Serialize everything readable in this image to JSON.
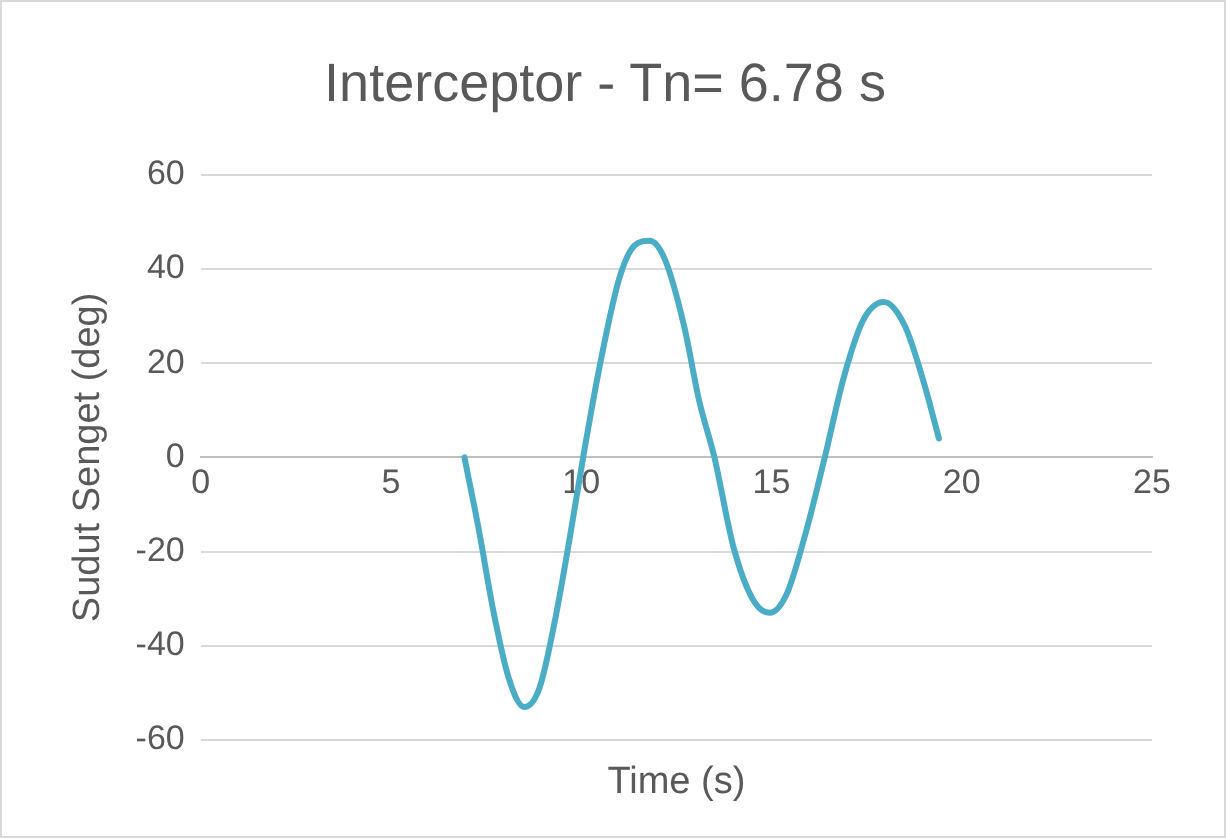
{
  "chart_data": {
    "type": "line",
    "title": "Interceptor - Tn= 6.78 s",
    "xlabel": "Time (s)",
    "ylabel": "Sudut Senget (deg)",
    "xlim": [
      0,
      25
    ],
    "xticks": [
      0,
      5,
      10,
      15,
      20,
      25
    ],
    "ylim": [
      -60,
      60
    ],
    "yticks": [
      -60,
      -40,
      -20,
      0,
      20,
      40,
      60
    ],
    "grid": "y",
    "legend": false,
    "series": [
      {
        "color": "#4bacc6",
        "x": [
          6.93,
          7.3,
          7.7,
          8.1,
          8.5,
          8.9,
          9.3,
          9.7,
          10.05,
          10.5,
          11.0,
          11.4,
          11.8,
          12.2,
          12.7,
          13.1,
          13.5,
          14.0,
          14.5,
          14.95,
          15.4,
          15.9,
          16.4,
          16.9,
          17.4,
          17.95,
          18.5,
          19.0,
          19.4
        ],
        "values": [
          0,
          -15,
          -33,
          -47,
          -53,
          -49,
          -35,
          -17,
          0,
          20,
          38,
          45,
          46,
          42,
          28,
          12,
          0,
          -19,
          -30,
          -33,
          -29,
          -16,
          0,
          17,
          29,
          33,
          28,
          16,
          4
        ]
      }
    ]
  }
}
